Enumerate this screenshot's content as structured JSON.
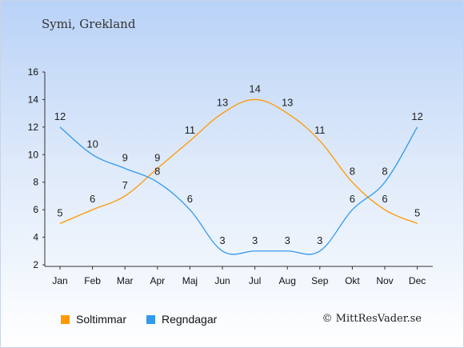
{
  "header": {
    "title": "Symi, Grekland"
  },
  "colors": {
    "sun": "#ff9900",
    "rain": "#3399ee"
  },
  "legend": {
    "sun_label": "Soltimmar",
    "rain_label": "Regndagar"
  },
  "footer": {
    "credit": "© MittResVader.se"
  },
  "chart_data": {
    "type": "line",
    "categories": [
      "Jan",
      "Feb",
      "Mar",
      "Apr",
      "Maj",
      "Jun",
      "Jul",
      "Aug",
      "Sep",
      "Okt",
      "Nov",
      "Dec"
    ],
    "ylim": [
      2,
      16
    ],
    "yticks": [
      2,
      4,
      6,
      8,
      10,
      12,
      14,
      16
    ],
    "grid": false,
    "legend_position": "bottom-left",
    "series": [
      {
        "name": "Soltimmar",
        "color": "#ff9900",
        "values": [
          5,
          6,
          7,
          9,
          11,
          13,
          14,
          13,
          11,
          8,
          6,
          5
        ]
      },
      {
        "name": "Regndagar",
        "color": "#3399ee",
        "values": [
          12,
          10,
          9,
          8,
          6,
          3,
          3,
          3,
          3,
          6,
          8,
          12
        ]
      }
    ]
  }
}
